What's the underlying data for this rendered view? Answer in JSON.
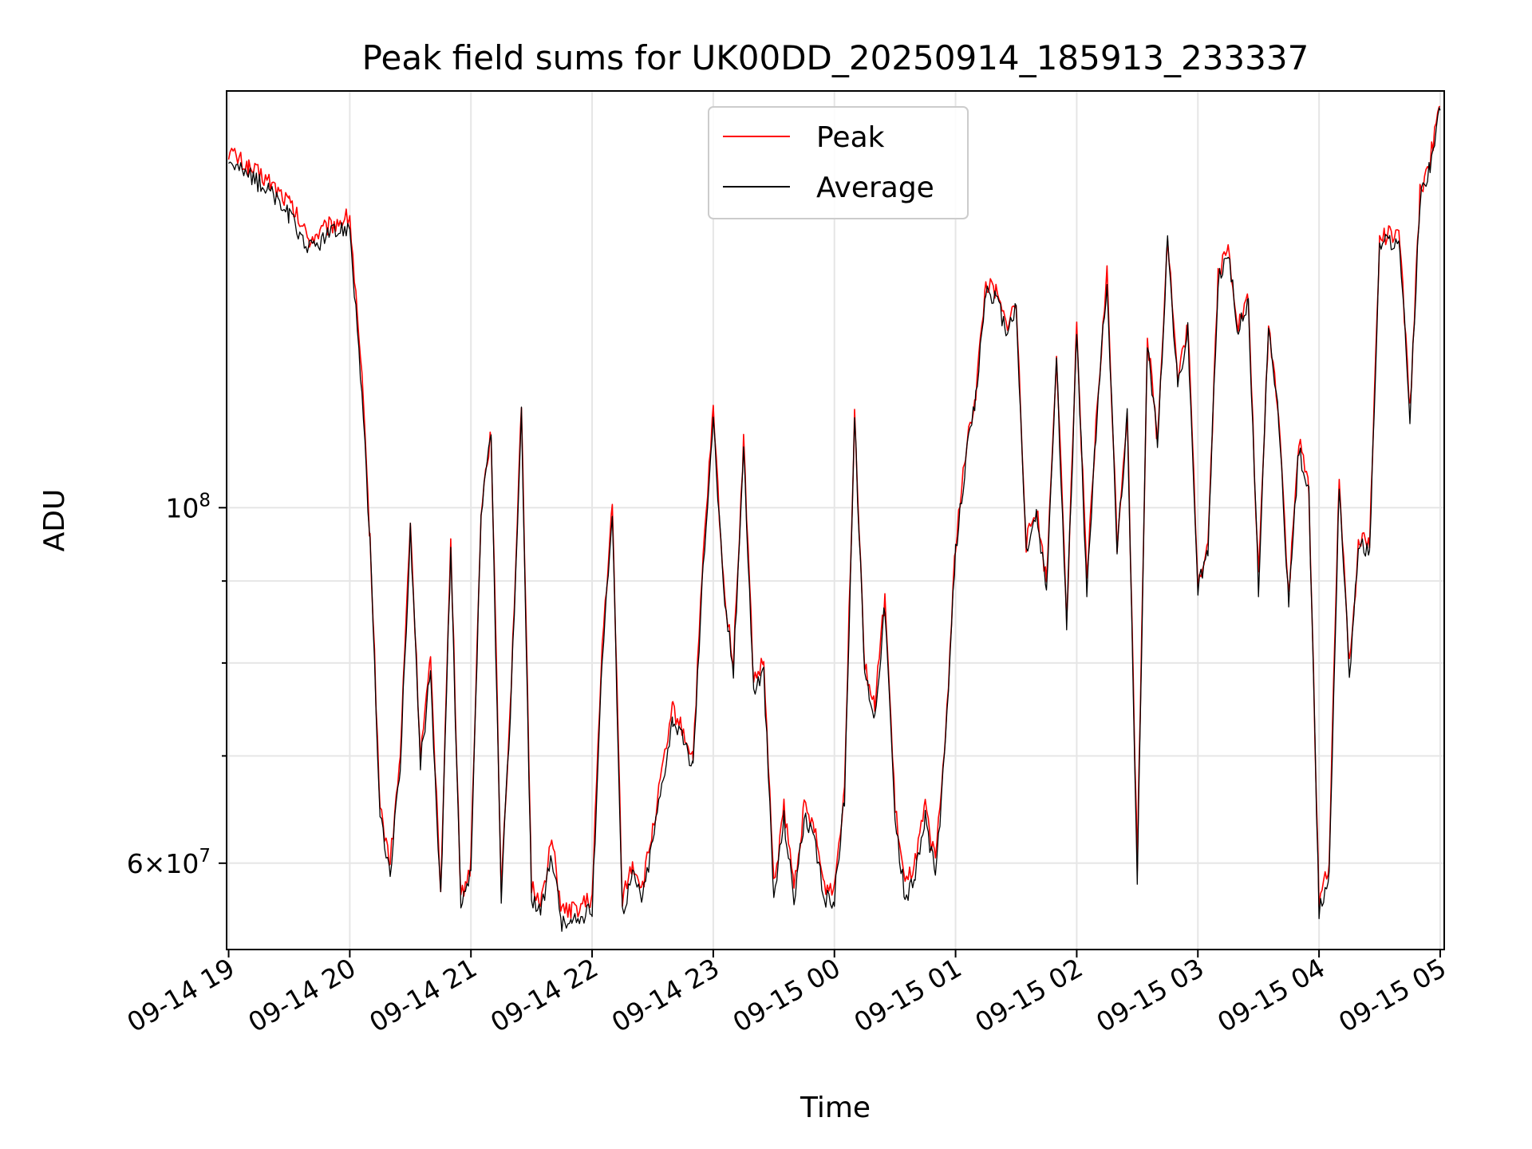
{
  "chart_data": {
    "type": "line",
    "title": "Peak field sums for UK00DD_20250914_185913_233337",
    "xlabel": "Time",
    "ylabel": "ADU",
    "yscale": "log",
    "grid": true,
    "legend_position": "top-center",
    "xlim": [
      "09-14 18:59",
      "09-15 05:02"
    ],
    "ylim": [
      53000000,
      182000000
    ],
    "x_ticks": [
      "09-14 19",
      "09-14 20",
      "09-14 21",
      "09-14 22",
      "09-14 23",
      "09-15 00",
      "09-15 01",
      "09-15 02",
      "09-15 03",
      "09-15 04",
      "09-15 05"
    ],
    "y_major_ticks": [
      {
        "value": 100000000,
        "base": "10",
        "exp": "8",
        "coef": ""
      },
      {
        "value": 60000000,
        "base": "10",
        "exp": "7",
        "coef": "6"
      }
    ],
    "y_minor_ticks": [
      70000000,
      80000000,
      90000000
    ],
    "x": [
      "09-14 19:00",
      "09-14 19:10",
      "09-14 19:20",
      "09-14 19:30",
      "09-14 19:40",
      "09-14 19:50",
      "09-14 20:00",
      "09-14 20:06",
      "09-14 20:10",
      "09-14 20:15",
      "09-14 20:20",
      "09-14 20:25",
      "09-14 20:30",
      "09-14 20:35",
      "09-14 20:40",
      "09-14 20:45",
      "09-14 20:50",
      "09-14 20:55",
      "09-14 21:00",
      "09-14 21:05",
      "09-14 21:10",
      "09-14 21:15",
      "09-14 21:20",
      "09-14 21:25",
      "09-14 21:30",
      "09-14 21:35",
      "09-14 21:40",
      "09-14 21:45",
      "09-14 21:50",
      "09-14 22:00",
      "09-14 22:05",
      "09-14 22:10",
      "09-14 22:15",
      "09-14 22:20",
      "09-14 22:25",
      "09-14 22:30",
      "09-14 22:40",
      "09-14 22:50",
      "09-14 22:55",
      "09-14 23:00",
      "09-14 23:05",
      "09-14 23:10",
      "09-14 23:15",
      "09-14 23:20",
      "09-14 23:25",
      "09-14 23:30",
      "09-14 23:35",
      "09-14 23:40",
      "09-14 23:45",
      "09-14 23:50",
      "09-14 23:55",
      "09-15 00:00",
      "09-15 00:05",
      "09-15 00:10",
      "09-15 00:15",
      "09-15 00:20",
      "09-15 00:25",
      "09-15 00:30",
      "09-15 00:35",
      "09-15 00:40",
      "09-15 00:45",
      "09-15 00:50",
      "09-15 00:55",
      "09-15 01:00",
      "09-15 01:05",
      "09-15 01:10",
      "09-15 01:15",
      "09-15 01:20",
      "09-15 01:25",
      "09-15 01:30",
      "09-15 01:35",
      "09-15 01:40",
      "09-15 01:45",
      "09-15 01:50",
      "09-15 01:55",
      "09-15 02:00",
      "09-15 02:05",
      "09-15 02:10",
      "09-15 02:15",
      "09-15 02:20",
      "09-15 02:25",
      "09-15 02:30",
      "09-15 02:35",
      "09-15 02:40",
      "09-15 02:45",
      "09-15 02:50",
      "09-15 02:55",
      "09-15 03:00",
      "09-15 03:05",
      "09-15 03:10",
      "09-15 03:15",
      "09-15 03:20",
      "09-15 03:25",
      "09-15 03:30",
      "09-15 03:35",
      "09-15 03:40",
      "09-15 03:45",
      "09-15 03:50",
      "09-15 03:55",
      "09-15 04:00",
      "09-15 04:05",
      "09-15 04:10",
      "09-15 04:15",
      "09-15 04:20",
      "09-15 04:25",
      "09-15 04:30",
      "09-15 04:35",
      "09-15 04:40",
      "09-15 04:45",
      "09-15 04:50",
      "09-15 04:55",
      "09-15 05:00"
    ],
    "series": [
      {
        "name": "Peak",
        "color": "#ff0000",
        "values": [
          167000000,
          163000000,
          160000000,
          155000000,
          147000000,
          150000000,
          152000000,
          120000000,
          96000000,
          65000000,
          60000000,
          70000000,
          98000000,
          70000000,
          80000000,
          58000000,
          95000000,
          57000000,
          60000000,
          100000000,
          112000000,
          58000000,
          78000000,
          115000000,
          58000000,
          57000000,
          62000000,
          56000000,
          56000000,
          57000000,
          82000000,
          100000000,
          57000000,
          60000000,
          58000000,
          63000000,
          75000000,
          70000000,
          93000000,
          115000000,
          90000000,
          80000000,
          110000000,
          78000000,
          80000000,
          58000000,
          65000000,
          58000000,
          65000000,
          63000000,
          58000000,
          58000000,
          67000000,
          115000000,
          80000000,
          75000000,
          88000000,
          65000000,
          58000000,
          60000000,
          65000000,
          60000000,
          72000000,
          95000000,
          108000000,
          118000000,
          138000000,
          136000000,
          130000000,
          134000000,
          95000000,
          100000000,
          90000000,
          125000000,
          85000000,
          130000000,
          90000000,
          115000000,
          140000000,
          95000000,
          115000000,
          60000000,
          128000000,
          110000000,
          148000000,
          120000000,
          130000000,
          90000000,
          95000000,
          140000000,
          145000000,
          130000000,
          135000000,
          90000000,
          130000000,
          115000000,
          88000000,
          110000000,
          103000000,
          57000000,
          60000000,
          105000000,
          80000000,
          96000000,
          95000000,
          147000000,
          148000000,
          147000000,
          115000000,
          157000000,
          165000000,
          178000000
        ]
      },
      {
        "name": "Average",
        "color": "#000000",
        "values": [
          165000000,
          161000000,
          158000000,
          152000000,
          145000000,
          148000000,
          150000000,
          118000000,
          95000000,
          64000000,
          59000000,
          69000000,
          97000000,
          69000000,
          79000000,
          57000000,
          94000000,
          56000000,
          59000000,
          99000000,
          111000000,
          57000000,
          77000000,
          114000000,
          57000000,
          56000000,
          61000000,
          55000000,
          55000000,
          56000000,
          81000000,
          99000000,
          56000000,
          59000000,
          57000000,
          62000000,
          74000000,
          69000000,
          92000000,
          114000000,
          89000000,
          79000000,
          109000000,
          77000000,
          79000000,
          57000000,
          64000000,
          57000000,
          64000000,
          62000000,
          57000000,
          57000000,
          66000000,
          114000000,
          79000000,
          74000000,
          87000000,
          64000000,
          57000000,
          59000000,
          64000000,
          59000000,
          71000000,
          94000000,
          107000000,
          117000000,
          137000000,
          135000000,
          129000000,
          133000000,
          94000000,
          99000000,
          89000000,
          124000000,
          84000000,
          129000000,
          89000000,
          114000000,
          139000000,
          94000000,
          114000000,
          59000000,
          127000000,
          109000000,
          147000000,
          119000000,
          129000000,
          89000000,
          94000000,
          139000000,
          144000000,
          129000000,
          134000000,
          89000000,
          129000000,
          114000000,
          87000000,
          109000000,
          102000000,
          56000000,
          59000000,
          104000000,
          79000000,
          95000000,
          94000000,
          146000000,
          147000000,
          146000000,
          114000000,
          156000000,
          164000000,
          177000000
        ]
      }
    ]
  }
}
